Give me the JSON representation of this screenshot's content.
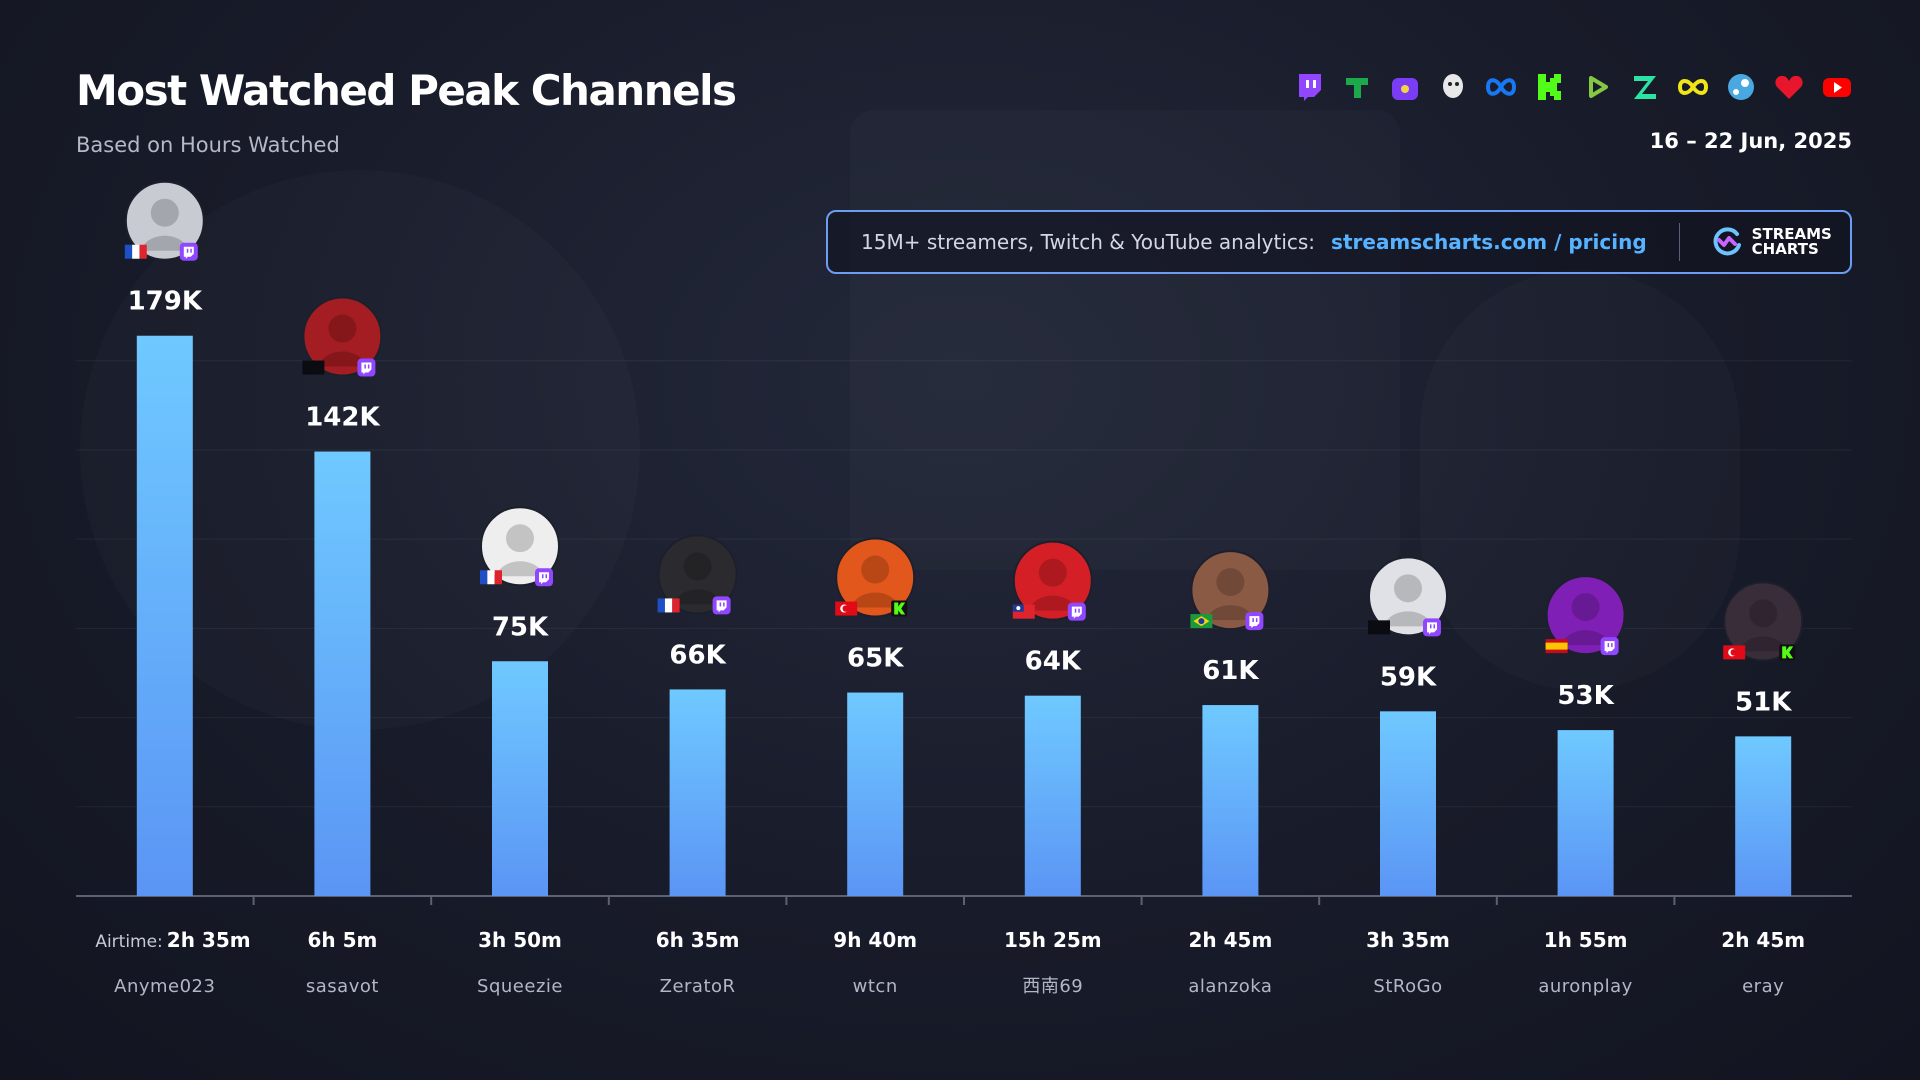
{
  "header": {
    "title": "Most Watched Peak Channels",
    "subtitle": "Based on Hours Watched",
    "date_range": "16 – 22 Jun, 2025"
  },
  "platforms": [
    {
      "name": "twitch-icon",
      "color": "#9146ff"
    },
    {
      "name": "trovo-icon",
      "color": "#1ba94c"
    },
    {
      "name": "nimo-icon",
      "color": "#7b3cf5"
    },
    {
      "name": "bigo-icon",
      "color": "#e8e8e8"
    },
    {
      "name": "meta-icon",
      "color": "#1877f2"
    },
    {
      "name": "kick-icon",
      "color": "#53fc18"
    },
    {
      "name": "rumble-icon",
      "color": "#85c742"
    },
    {
      "name": "zstream-icon",
      "color": "#2be3a3"
    },
    {
      "name": "loop-icon",
      "color": "#f0e516"
    },
    {
      "name": "steam-icon",
      "color": "#4aa8e0"
    },
    {
      "name": "heart-icon",
      "color": "#e8162c"
    },
    {
      "name": "youtube-icon",
      "color": "#ff0000"
    }
  ],
  "promo": {
    "text": "15M+ streamers, Twitch & YouTube analytics:",
    "link": "streamscharts.com / pricing",
    "brand": "STREAMS\nCHARTS"
  },
  "chart_data": {
    "type": "bar",
    "categories": [
      "Anyme023",
      "sasavot",
      "Squeezie",
      "ZeratoR",
      "wtcn",
      "西南69",
      "alanzoka",
      "StRoGo",
      "auronplay",
      "eray"
    ],
    "values": [
      179000,
      142000,
      75000,
      66000,
      65000,
      64000,
      61000,
      59000,
      53000,
      51000
    ],
    "value_labels": [
      "179K",
      "142K",
      "75K",
      "66K",
      "65K",
      "64K",
      "61K",
      "59K",
      "53K",
      "51K"
    ],
    "airtime_label": "Airtime:",
    "airtime": [
      "2h 35m",
      "6h 5m",
      "3h 50m",
      "6h 35m",
      "9h 40m",
      "15h 25m",
      "2h 45m",
      "3h 35m",
      "1h 55m",
      "2h 45m"
    ],
    "platform": [
      "twitch",
      "twitch",
      "twitch",
      "twitch",
      "kick",
      "twitch",
      "twitch",
      "twitch",
      "twitch",
      "kick"
    ],
    "flag": [
      "fr",
      "none",
      "fr",
      "fr",
      "tr",
      "tw",
      "br",
      "none",
      "es",
      "tr"
    ],
    "avatar_color": [
      "#c9cbd3",
      "#a31d22",
      "#eeeeee",
      "#2b2b2f",
      "#e2571c",
      "#d41f26",
      "#8a5a45",
      "#dfe1e6",
      "#7f1fb5",
      "#3a2d3a"
    ],
    "ylim": [
      0,
      200000
    ],
    "grid": true,
    "bar_color_top": "#6fc9ff",
    "bar_color_bottom": "#5b95f5"
  }
}
